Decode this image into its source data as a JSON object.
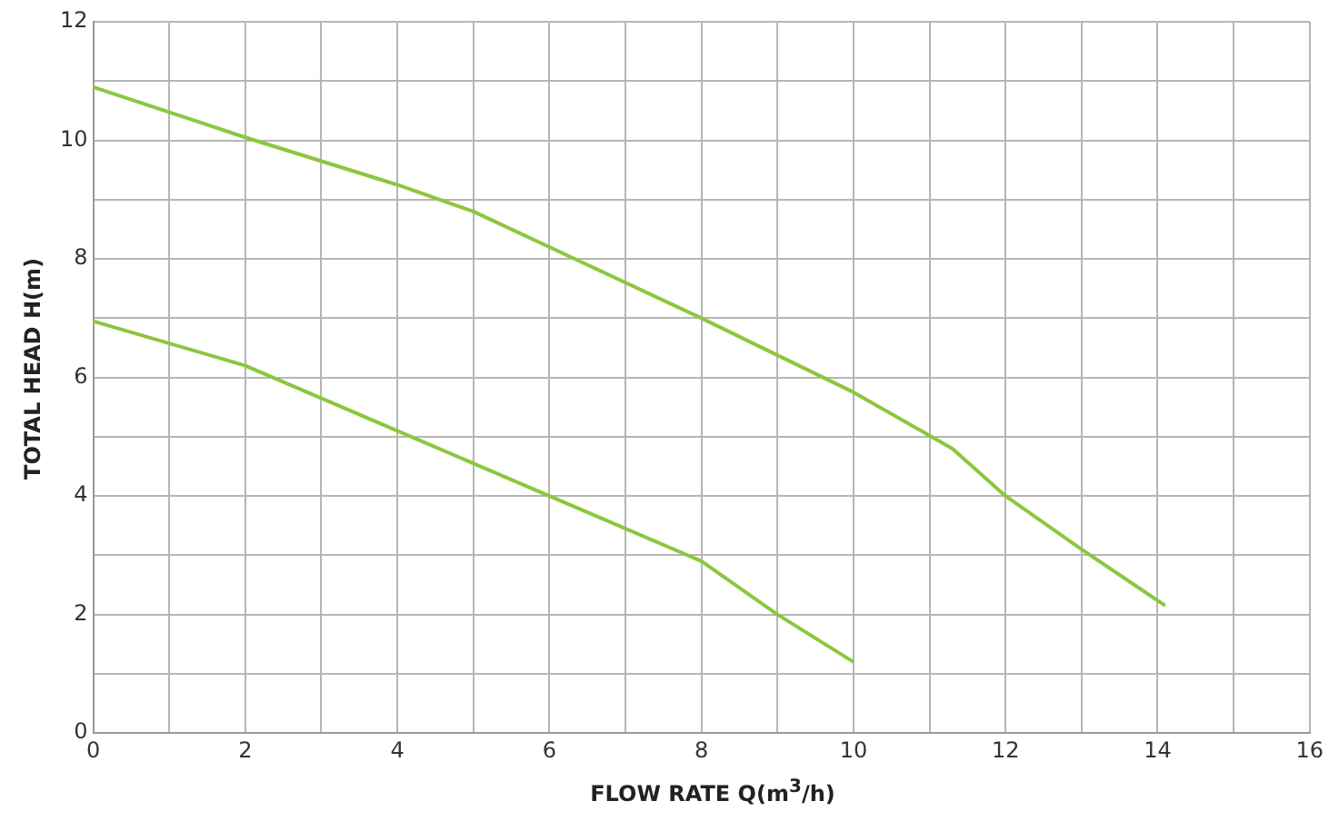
{
  "chart_data": {
    "type": "line",
    "xlabel": "FLOW RATE Q(m$^{3}$/h)",
    "ylabel": "TOTAL HEAD H(m)",
    "xlim": [
      0,
      16
    ],
    "ylim": [
      0,
      12
    ],
    "xticks": [
      0,
      {
        "value": 1,
        "label": null
      },
      2,
      {
        "value": 3,
        "label": null
      },
      4,
      {
        "value": 5,
        "label": null
      },
      6,
      {
        "value": 7,
        "label": null
      },
      8,
      {
        "value": 9,
        "label": null
      },
      10,
      {
        "value": 11,
        "label": null
      },
      12,
      {
        "value": 13,
        "label": null
      },
      14,
      {
        "value": 15,
        "label": null
      },
      16
    ],
    "yticks": [
      0,
      {
        "value": 1,
        "label": null
      },
      2,
      {
        "value": 3,
        "label": null
      },
      4,
      {
        "value": 5,
        "label": null
      },
      6,
      {
        "value": 7,
        "label": null
      },
      8,
      {
        "value": 9,
        "label": null
      },
      10,
      {
        "value": 11,
        "label": null
      },
      12
    ],
    "grid": true,
    "legend": false,
    "marker": "none",
    "line_style": "solid",
    "series": [
      {
        "color": "#8dc63f",
        "x": [
          0,
          2,
          4,
          5,
          6,
          8,
          10,
          11.3,
          12,
          13,
          14.1
        ],
        "values": [
          10.9,
          10.05,
          9.25,
          8.8,
          8.2,
          7.0,
          5.75,
          4.8,
          4.0,
          3.1,
          2.15
        ]
      },
      {
        "color": "#8dc63f",
        "x": [
          0,
          2,
          4,
          6,
          8,
          9,
          10
        ],
        "values": [
          6.95,
          6.2,
          5.1,
          4.0,
          2.9,
          2.0,
          1.2
        ]
      }
    ]
  }
}
